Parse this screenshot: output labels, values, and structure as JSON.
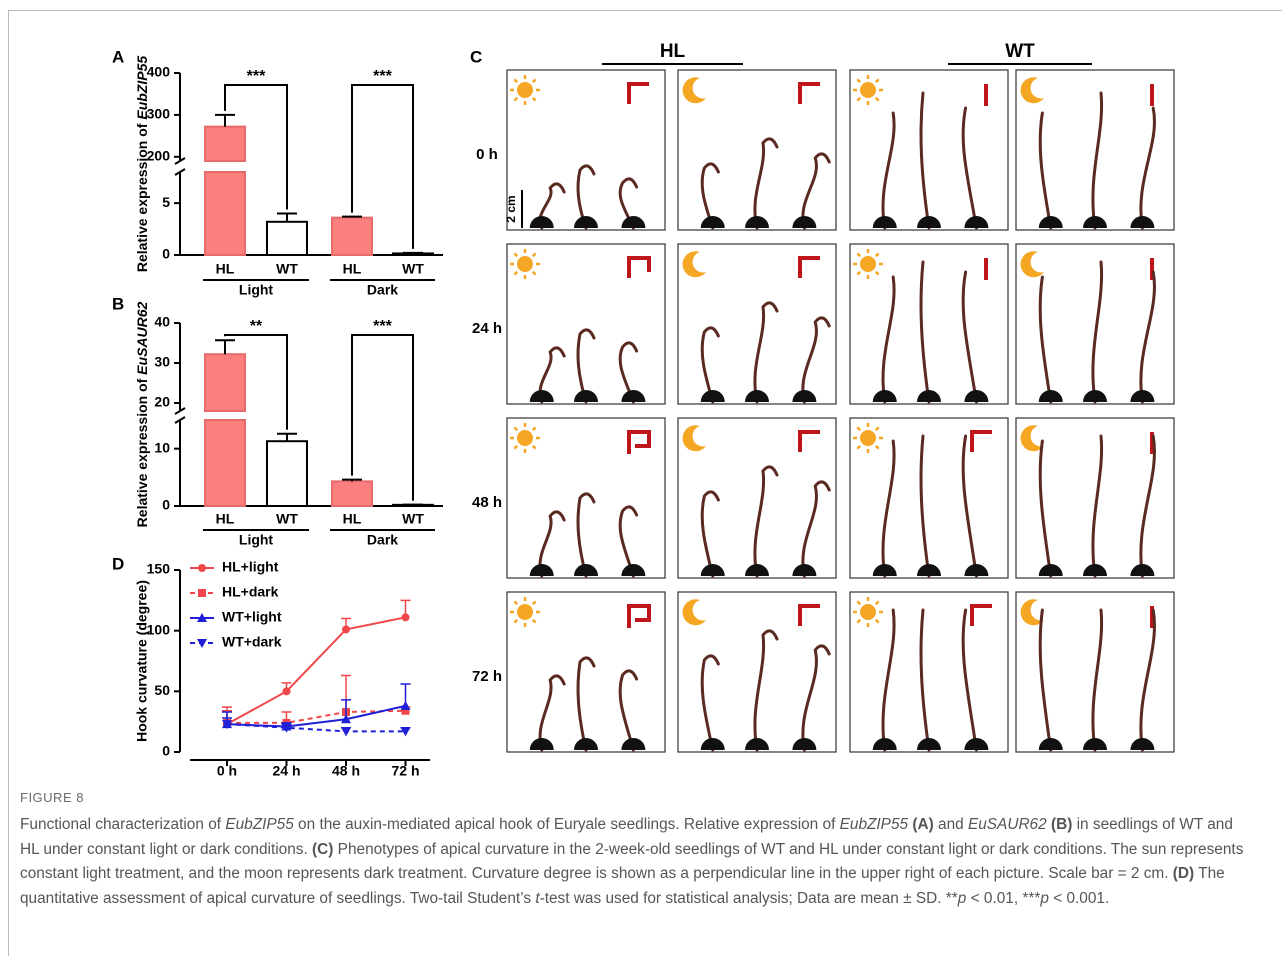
{
  "chart_data": [
    {
      "type": "bar",
      "panel": "A",
      "ylabel": {
        "text": "Relative expression of ",
        "gene": "EubZIP55"
      },
      "categories": [
        "HL",
        "WT",
        "HL",
        "WT"
      ],
      "groups": [
        "Light",
        "Dark"
      ],
      "values": [
        272,
        3.2,
        3.6,
        0.15
      ],
      "errors": [
        28,
        0.8,
        0.1,
        0.05
      ],
      "colors": [
        "#fa7f7f",
        "#ffffff",
        "#fa7f7f",
        "#ffffff"
      ],
      "edgecolors": [
        "#e86a6a",
        "#000000",
        "#e86a6a",
        "#000000"
      ],
      "segments": [
        {
          "ylim": [
            0,
            8
          ],
          "yticks": [
            0,
            5
          ]
        },
        {
          "ylim": [
            190,
            400
          ],
          "yticks": [
            200,
            300,
            400
          ]
        }
      ],
      "significance": [
        "***",
        "***"
      ]
    },
    {
      "type": "bar",
      "panel": "B",
      "ylabel": {
        "text": "Relative expression of ",
        "gene": "EuSAUR62"
      },
      "categories": [
        "HL",
        "WT",
        "HL",
        "WT"
      ],
      "groups": [
        "Light",
        "Dark"
      ],
      "values": [
        32.2,
        11.3,
        4.3,
        0.2
      ],
      "errors": [
        3.5,
        1.3,
        0.3,
        0.05
      ],
      "colors": [
        "#fa7f7f",
        "#ffffff",
        "#fa7f7f",
        "#ffffff"
      ],
      "edgecolors": [
        "#e86a6a",
        "#000000",
        "#e86a6a",
        "#000000"
      ],
      "segments": [
        {
          "ylim": [
            0,
            15
          ],
          "yticks": [
            0,
            10
          ]
        },
        {
          "ylim": [
            18,
            40
          ],
          "yticks": [
            20,
            30,
            40
          ]
        }
      ],
      "significance": [
        "**",
        "***"
      ]
    },
    {
      "type": "line",
      "panel": "D",
      "ylabel": "Hook curvature (degree)",
      "categories": [
        "0 h",
        "24 h",
        "48 h",
        "72 h"
      ],
      "ylim": [
        0,
        150
      ],
      "yticks": [
        0,
        50,
        100,
        150
      ],
      "series": [
        {
          "name": "HL+light",
          "color": "#f0484a",
          "dashed": false,
          "marker": "circle",
          "values": [
            23,
            50,
            101,
            111
          ],
          "errors": [
            14,
            7,
            9,
            14
          ]
        },
        {
          "name": "HL+dark",
          "color": "#f0484a",
          "dashed": true,
          "marker": "square",
          "values": [
            24,
            24,
            33,
            34
          ],
          "errors": [
            10,
            9,
            30,
            3
          ]
        },
        {
          "name": "WT+light",
          "color": "#1f1fd8",
          "dashed": false,
          "marker": "triangle",
          "values": [
            23,
            21,
            27,
            38
          ],
          "errors": [
            10,
            3,
            16,
            18
          ]
        },
        {
          "name": "WT+dark",
          "color": "#1f1fd8",
          "dashed": true,
          "marker": "triangle-down",
          "values": [
            23,
            20,
            17,
            17
          ],
          "errors": [
            5,
            3,
            3,
            3
          ]
        }
      ]
    }
  ],
  "photo_panel": {
    "label": "C",
    "groups": [
      "HL",
      "WT"
    ],
    "rows": [
      "0 h",
      "24 h",
      "48 h",
      "72 h"
    ],
    "scale_bar": "2 cm"
  },
  "caption": {
    "figure_label": "FIGURE 8",
    "runs": [
      {
        "text": "Functional characterization of "
      },
      {
        "text": "EubZIP55",
        "style": "italic"
      },
      {
        "text": " on the auxin-mediated apical hook of Euryale seedlings. Relative expression of "
      },
      {
        "text": "EubZIP55",
        "style": "italic"
      },
      {
        "text": " (A)",
        "style": "bold"
      },
      {
        "text": " and "
      },
      {
        "text": "EuSAUR62",
        "style": "italic"
      },
      {
        "text": " (B)",
        "style": "bold"
      },
      {
        "text": " in seedlings of WT and HL under constant light or dark conditions. "
      },
      {
        "text": "(C)",
        "style": "bold"
      },
      {
        "text": " Phenotypes of apical curvature in the 2-week-old seedlings of WT and HL under constant light or dark conditions. The sun represents constant light treatment, and the moon represents dark treatment. Curvature degree is shown as a perpendicular line in the upper right of each picture. Scale bar = 2 cm. "
      },
      {
        "text": "(D)",
        "style": "bold"
      },
      {
        "text": " The quantitative assessment of apical curvature of seedlings. Two-tail Student’s "
      },
      {
        "text": "t",
        "style": "italic"
      },
      {
        "text": "-test was used for statistical analysis; Data are mean ± SD. **"
      },
      {
        "text": "p",
        "style": "italic"
      },
      {
        "text": " < 0.01, ***"
      },
      {
        "text": "p",
        "style": "italic"
      },
      {
        "text": " < 0.001."
      }
    ]
  }
}
